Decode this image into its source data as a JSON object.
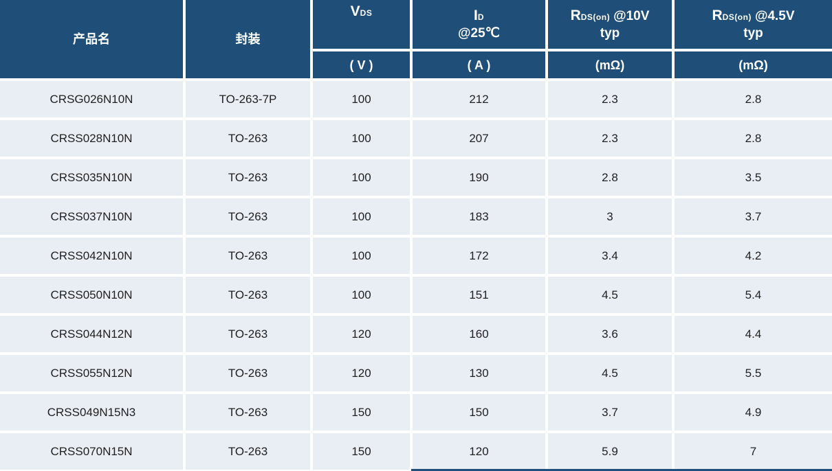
{
  "table": {
    "header": {
      "product": "产品名",
      "package": "封装",
      "vds": {
        "main": "V",
        "sub": "DS"
      },
      "id": {
        "main": "I",
        "sub": "D",
        "line2": "@25℃"
      },
      "rds10": {
        "main": "R",
        "sub": "DS(on)",
        "rest": "@10V",
        "line2": "typ"
      },
      "rds45": {
        "main": "R",
        "sub": "DS(on)",
        "rest": "@4.5V",
        "line2": "typ"
      },
      "units": {
        "vds": "( V )",
        "id": "( A )",
        "rds10": "(mΩ)",
        "rds45": "(mΩ)"
      }
    },
    "rows": [
      {
        "product": "CRSG026N10N",
        "package": "TO-263-7P",
        "vds": "100",
        "id": "212",
        "rds10": "2.3",
        "rds45": "2.8"
      },
      {
        "product": "CRSS028N10N",
        "package": "TO-263",
        "vds": "100",
        "id": "207",
        "rds10": "2.3",
        "rds45": "2.8"
      },
      {
        "product": "CRSS035N10N",
        "package": "TO-263",
        "vds": "100",
        "id": "190",
        "rds10": "2.8",
        "rds45": "3.5"
      },
      {
        "product": "CRSS037N10N",
        "package": "TO-263",
        "vds": "100",
        "id": "183",
        "rds10": "3",
        "rds45": "3.7"
      },
      {
        "product": "CRSS042N10N",
        "package": "TO-263",
        "vds": "100",
        "id": "172",
        "rds10": "3.4",
        "rds45": "4.2"
      },
      {
        "product": "CRSS050N10N",
        "package": "TO-263",
        "vds": "100",
        "id": "151",
        "rds10": "4.5",
        "rds45": "5.4"
      },
      {
        "product": "CRSS044N12N",
        "package": "TO-263",
        "vds": "120",
        "id": "160",
        "rds10": "3.6",
        "rds45": "4.4"
      },
      {
        "product": "CRSS055N12N",
        "package": "TO-263",
        "vds": "120",
        "id": "130",
        "rds10": "4.5",
        "rds45": "5.5"
      },
      {
        "product": "CRSS049N15N3",
        "package": "TO-263",
        "vds": "150",
        "id": "150",
        "rds10": "3.7",
        "rds45": "4.9"
      },
      {
        "product": "CRSS070N15N",
        "package": "TO-263",
        "vds": "150",
        "id": "120",
        "rds10": "5.9",
        "rds45": "7"
      }
    ],
    "colors": {
      "header_bg": "#1f4e79",
      "row_bg": "#e9edf4",
      "gap": "#ffffff",
      "header_text": "#ffffff",
      "cell_text": "#1f1f1f"
    }
  }
}
